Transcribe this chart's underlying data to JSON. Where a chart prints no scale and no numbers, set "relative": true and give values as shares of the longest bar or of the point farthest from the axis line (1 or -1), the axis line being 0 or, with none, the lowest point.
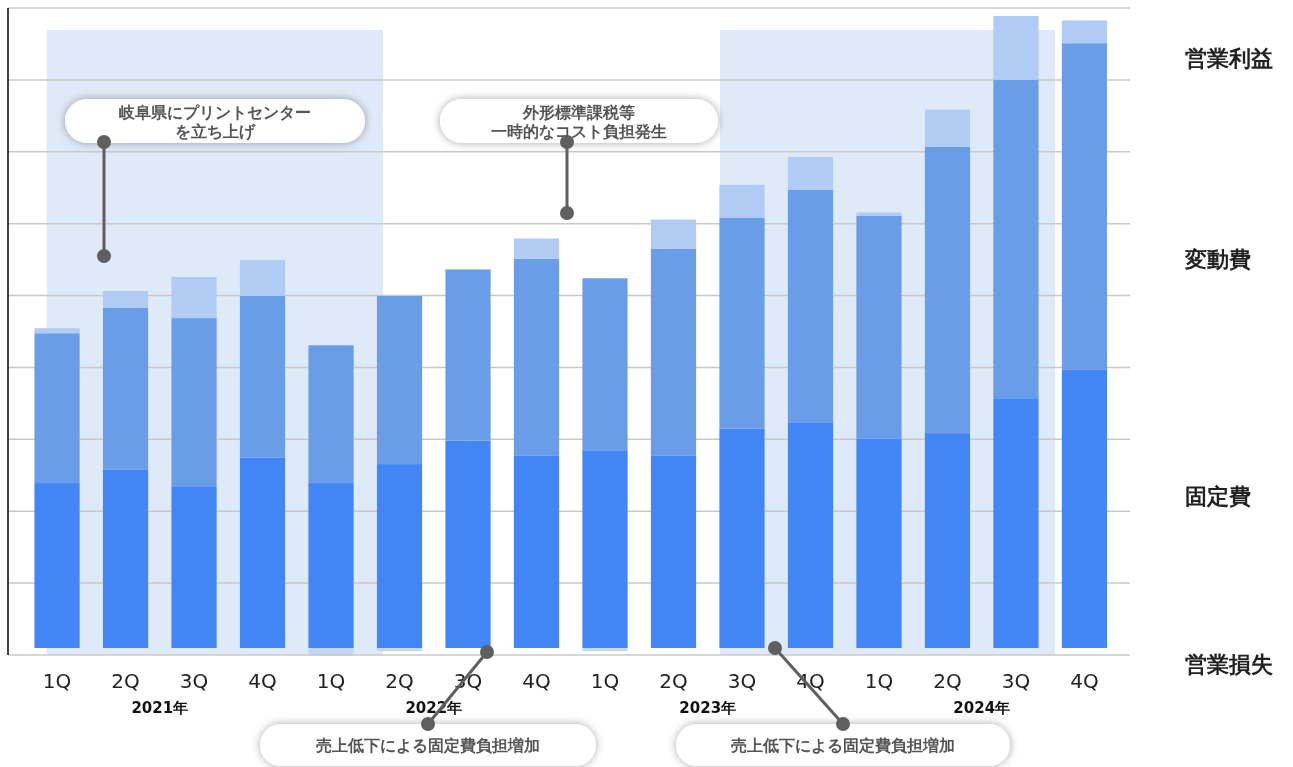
{
  "chart_data": {
    "type": "bar",
    "stacked": true,
    "relative": true,
    "grid": "y",
    "legend": "right",
    "categories": [
      "1Q",
      "2Q",
      "3Q",
      "4Q",
      "1Q",
      "2Q",
      "3Q",
      "4Q",
      "1Q",
      "2Q",
      "3Q",
      "4Q",
      "1Q",
      "2Q",
      "3Q",
      "4Q"
    ],
    "series": [
      {
        "name": "固定費",
        "color": "#4285f4",
        "values": [
          0.261,
          0.282,
          0.256,
          0.301,
          0.261,
          0.291,
          0.328,
          0.304,
          0.313,
          0.304,
          0.347,
          0.356,
          0.331,
          0.34,
          0.394,
          0.44
        ]
      },
      {
        "name": "変動費",
        "color": "#6a9de8",
        "values": [
          0.237,
          0.256,
          0.266,
          0.256,
          0.218,
          0.266,
          0.271,
          0.312,
          0.272,
          0.328,
          0.334,
          0.369,
          0.353,
          0.453,
          0.505,
          0.517
        ]
      },
      {
        "name": "営業利益",
        "color": "#b0cbf4",
        "values": [
          0.008,
          0.027,
          0.065,
          0.057,
          null,
          null,
          null,
          0.032,
          null,
          0.046,
          0.052,
          0.052,
          0.005,
          0.059,
          0.101,
          0.036
        ]
      },
      {
        "name": "営業損失",
        "color": "#c4d8f6",
        "values": [
          null,
          null,
          null,
          null,
          -0.012,
          -0.005,
          null,
          null,
          -0.005,
          null,
          null,
          null,
          null,
          null,
          null,
          null
        ]
      }
    ],
    "annotations": [
      "岐阜県にプリントセンターを立ち上げ",
      "外形標準課税等一時的なコスト負担発生",
      "売上低下による固定費負担増加",
      "売上低下による固定費負担増加",
      "2021年",
      "2022年",
      "2023年",
      "2024年"
    ]
  }
}
